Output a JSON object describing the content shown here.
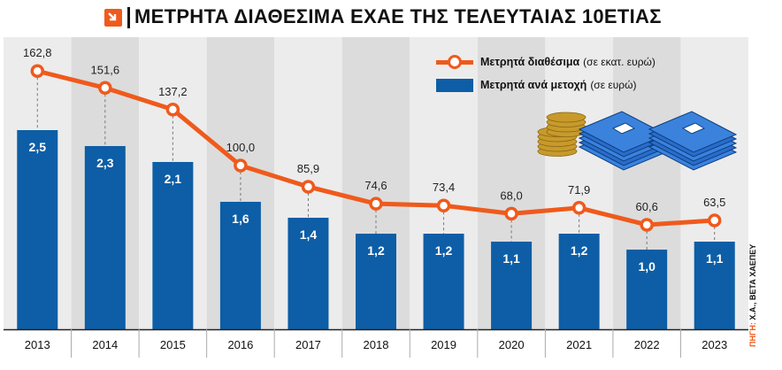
{
  "title": "ΜΕΤΡΗΤΑ ΔΙΑΘΕΣΙΜΑ ΕΧΑΕ ΤΗΣ ΤΕΛΕΥΤΑΙΑΣ 10ΕΤΙΑΣ",
  "source": {
    "label": "ΠΗΓΗ:",
    "text": "Χ.Α., ΒΕΤΑ ΧΑΕΠΕΥ"
  },
  "colors": {
    "line": "#ef5a1c",
    "bar": "#0d5ea6",
    "band_light": "#ececec",
    "band_dark": "#dcdcdc"
  },
  "chart_data": {
    "type": "bar",
    "categories": [
      "2013",
      "2014",
      "2015",
      "2016",
      "2017",
      "2018",
      "2019",
      "2020",
      "2021",
      "2022",
      "2023"
    ],
    "series": [
      {
        "name": "Μετρητά διαθέσιμα",
        "unit": "(σε εκατ. ευρώ)",
        "type": "line",
        "values": [
          162.8,
          151.6,
          137.2,
          100.0,
          85.9,
          74.6,
          73.4,
          68.0,
          71.9,
          60.6,
          63.5
        ],
        "labels": [
          "162,8",
          "151,6",
          "137,2",
          "100,0",
          "85,9",
          "74,6",
          "73,4",
          "68,0",
          "71,9",
          "60,6",
          "63,5"
        ]
      },
      {
        "name": "Μετρητά ανά μετοχή",
        "unit": "(σε ευρώ)",
        "type": "bar",
        "values": [
          2.5,
          2.3,
          2.1,
          1.6,
          1.4,
          1.2,
          1.2,
          1.1,
          1.2,
          1.0,
          1.1
        ],
        "labels": [
          "2,5",
          "2,3",
          "2,1",
          "1,6",
          "1,4",
          "1,2",
          "1,2",
          "1,1",
          "1,2",
          "1,0",
          "1,1"
        ]
      }
    ],
    "legend_position": "top-right",
    "grid": false
  }
}
